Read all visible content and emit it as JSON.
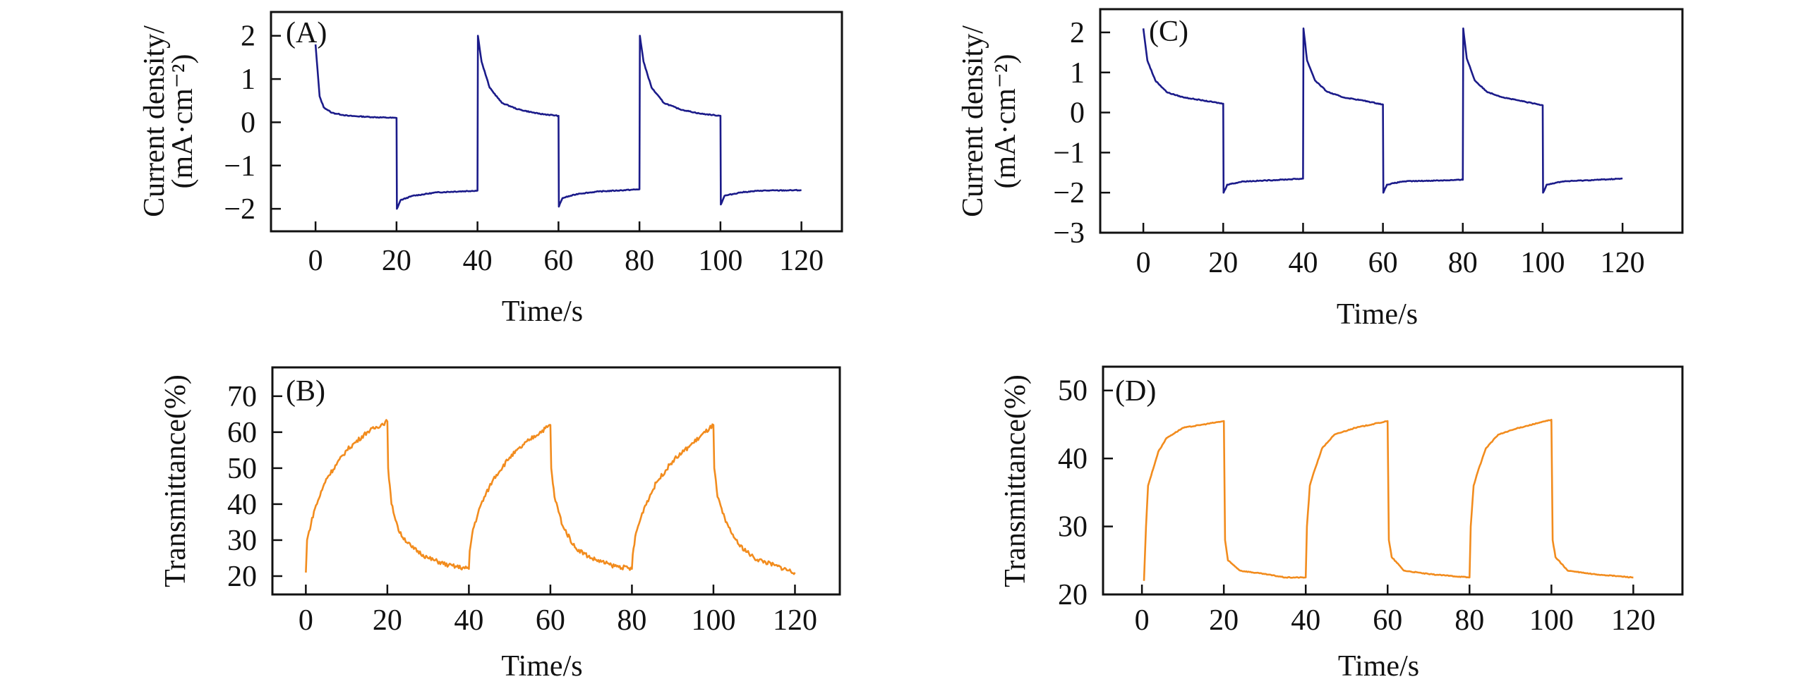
{
  "chart_data": [
    {
      "panel": "(A)",
      "type": "line",
      "xlabel": "Time/s",
      "ylabel": [
        "Current density/",
        "(mA·cm⁻²)"
      ],
      "xlim": [
        -11,
        130
      ],
      "ylim": [
        -2.52,
        2.55
      ],
      "xticks": [
        0,
        20,
        40,
        60,
        80,
        100,
        120
      ],
      "yticks": [
        -2,
        -1,
        0,
        1,
        2
      ],
      "color": "#1b1b8a",
      "x": [
        0,
        1,
        2,
        4,
        8,
        14,
        20,
        20.1,
        21,
        24,
        30,
        40,
        40.1,
        41,
        43,
        46,
        50,
        55,
        60,
        60.1,
        61,
        65,
        70,
        80,
        80.1,
        81,
        83,
        86,
        90,
        95,
        100,
        100.1,
        101,
        105,
        110,
        120
      ],
      "y": [
        1.8,
        0.6,
        0.35,
        0.22,
        0.15,
        0.12,
        0.1,
        -2.0,
        -1.8,
        -1.7,
        -1.62,
        -1.58,
        2.0,
        1.4,
        0.8,
        0.45,
        0.3,
        0.2,
        0.15,
        -1.95,
        -1.75,
        -1.65,
        -1.6,
        -1.55,
        2.0,
        1.4,
        0.8,
        0.45,
        0.3,
        0.2,
        0.15,
        -1.9,
        -1.7,
        -1.62,
        -1.58,
        -1.57
      ]
    },
    {
      "panel": "(B)",
      "type": "line",
      "xlabel": "Time/s",
      "ylabel": [
        "Transmittance(%)"
      ],
      "xlim": [
        -8.2,
        131
      ],
      "ylim": [
        14.9,
        78
      ],
      "xticks": [
        0,
        20,
        40,
        60,
        80,
        100,
        120
      ],
      "yticks": [
        20,
        30,
        40,
        50,
        60,
        70
      ],
      "color": "#f28c1e",
      "x": [
        0,
        0.3,
        2,
        5,
        10,
        15,
        20,
        20.2,
        21,
        23,
        26,
        30,
        35,
        40,
        40.2,
        41,
        43,
        46,
        50,
        55,
        60,
        60.2,
        61,
        63,
        66,
        70,
        75,
        80,
        80.2,
        81,
        83,
        86,
        90,
        95,
        100,
        100.2,
        101,
        103,
        106,
        110,
        115,
        120
      ],
      "y": [
        21,
        30,
        38,
        47,
        55,
        60,
        63,
        50,
        40,
        32,
        28,
        25,
        23,
        22,
        27,
        33,
        40,
        47,
        53,
        58,
        62,
        50,
        42,
        34,
        28,
        25,
        23,
        22,
        26,
        32,
        39,
        46,
        52,
        57,
        62,
        50,
        42,
        35,
        29,
        25,
        23,
        21
      ]
    },
    {
      "panel": "(C)",
      "type": "line",
      "xlabel": "Time/s",
      "ylabel": [
        "Current density/",
        "(mA·cm⁻²)"
      ],
      "xlim": [
        -10.8,
        135
      ],
      "ylim": [
        -3,
        2.58
      ],
      "xticks": [
        0,
        20,
        40,
        60,
        80,
        100,
        120
      ],
      "yticks": [
        -3,
        -2,
        -1,
        0,
        1,
        2
      ],
      "color": "#1b1b8a",
      "x": [
        0,
        1,
        3,
        6,
        10,
        15,
        20,
        20.1,
        21,
        25,
        30,
        40,
        40.1,
        41,
        43,
        46,
        50,
        55,
        60,
        60.1,
        61,
        65,
        80,
        80.1,
        81,
        83,
        86,
        90,
        95,
        100,
        100.1,
        101,
        105,
        120
      ],
      "y": [
        2.1,
        1.3,
        0.8,
        0.5,
        0.38,
        0.3,
        0.22,
        -2.0,
        -1.8,
        -1.72,
        -1.7,
        -1.65,
        2.1,
        1.3,
        0.8,
        0.52,
        0.38,
        0.3,
        0.2,
        -2.0,
        -1.8,
        -1.72,
        -1.68,
        2.1,
        1.35,
        0.8,
        0.52,
        0.38,
        0.28,
        0.18,
        -2.0,
        -1.8,
        -1.72,
        -1.65
      ]
    },
    {
      "panel": "(D)",
      "type": "line",
      "xlabel": "Time/s",
      "ylabel": [
        "Transmittance(%)"
      ],
      "xlim": [
        -9.5,
        132
      ],
      "ylim": [
        20,
        53.5
      ],
      "xticks": [
        0,
        20,
        40,
        60,
        80,
        100,
        120
      ],
      "yticks": [
        20,
        30,
        40,
        50
      ],
      "color": "#f28c1e",
      "x": [
        0.5,
        1,
        1.5,
        2,
        4,
        6,
        10,
        15,
        20,
        20.3,
        21,
        24,
        30,
        35,
        40,
        40.3,
        41,
        42,
        44,
        47,
        52,
        60,
        60.3,
        61,
        64,
        70,
        80,
        80.3,
        81,
        82,
        84,
        87,
        92,
        100,
        100.3,
        101,
        104,
        110,
        120
      ],
      "y": [
        22,
        30,
        36,
        37,
        41,
        43,
        44.5,
        45,
        45.5,
        28,
        25,
        23.5,
        23,
        22.5,
        22.5,
        30,
        36,
        38,
        41.5,
        43.5,
        44.5,
        45.5,
        28,
        25.5,
        23.5,
        23,
        22.5,
        30,
        36,
        38,
        41.5,
        43.5,
        44.5,
        45.7,
        28,
        25.5,
        23.5,
        23,
        22.5
      ]
    }
  ]
}
